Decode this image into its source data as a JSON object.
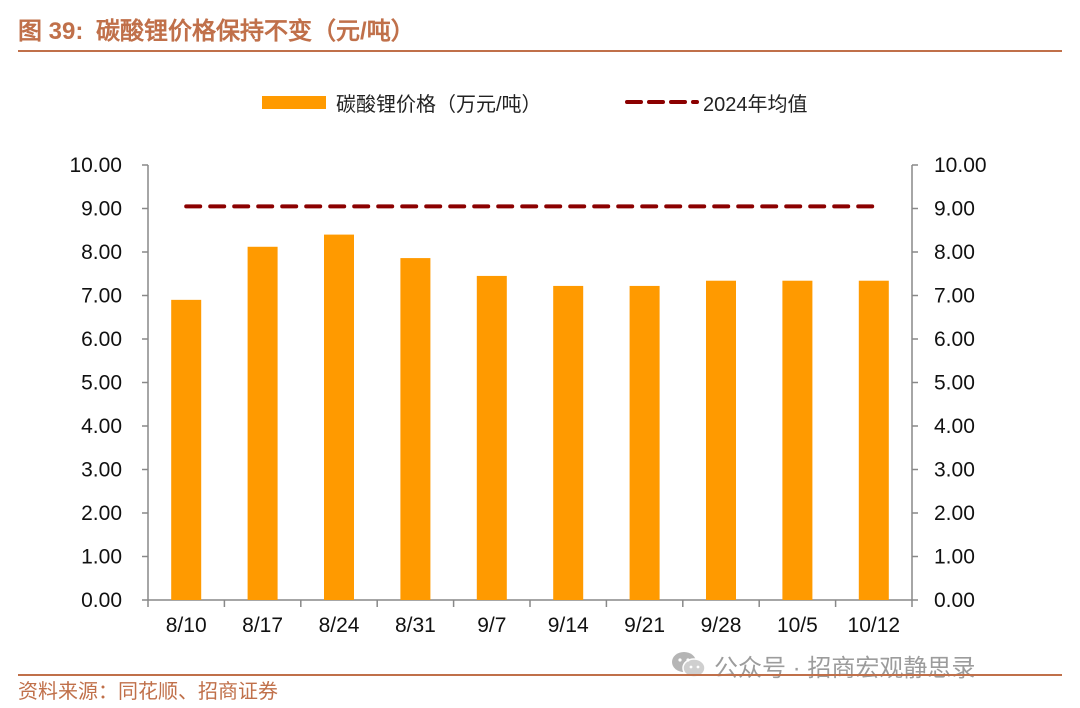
{
  "figure": {
    "number": "图 39:",
    "title": "碳酸锂价格保持不变（元/吨）"
  },
  "watermark": {
    "icon": "wechat-icon",
    "text": "公众号 · 招商宏观静思录"
  },
  "source": "资料来源：同花顺、招商证券",
  "colors": {
    "accent": "#c0704a",
    "bar": "#ff9a00",
    "avg_line": "#8b0000"
  },
  "chart_data": {
    "type": "bar",
    "categories": [
      "8/10",
      "8/17",
      "8/24",
      "8/31",
      "9/7",
      "9/14",
      "9/21",
      "9/28",
      "10/5",
      "10/12"
    ],
    "series": [
      {
        "name": "碳酸锂价格（万元/吨）",
        "type": "bar",
        "values": [
          6.9,
          8.12,
          8.4,
          7.86,
          7.45,
          7.22,
          7.22,
          7.34,
          7.34,
          7.34
        ]
      },
      {
        "name": "2024年均值",
        "type": "line",
        "style": "dashed",
        "values": [
          9.05,
          9.05,
          9.05,
          9.05,
          9.05,
          9.05,
          9.05,
          9.05,
          9.05,
          9.05
        ]
      }
    ],
    "y_ticks": [
      "0.00",
      "1.00",
      "2.00",
      "3.00",
      "4.00",
      "5.00",
      "6.00",
      "7.00",
      "8.00",
      "9.00",
      "10.00"
    ],
    "ylim": [
      0,
      10
    ],
    "y_axis_left": true,
    "y_axis_right": true,
    "grid": false,
    "legend_position": "top-center"
  }
}
